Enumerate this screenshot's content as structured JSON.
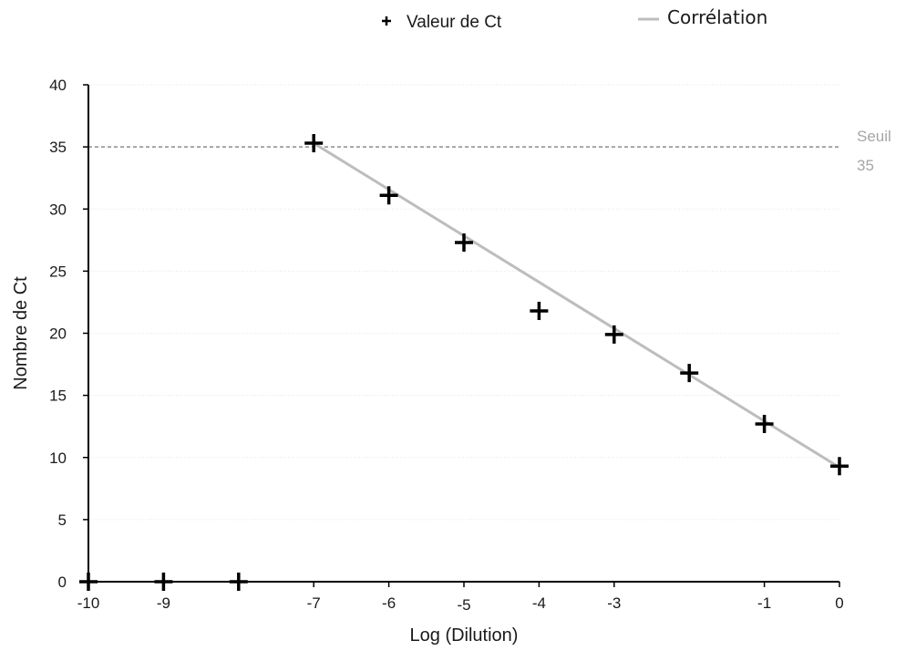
{
  "chart_data": {
    "type": "scatter",
    "title": "",
    "xlabel": "Log (Dilution)",
    "ylabel": "Nombre de Ct",
    "xlim": [
      -10,
      0
    ],
    "ylim": [
      0,
      40
    ],
    "x_ticks": [
      {
        "value": -10,
        "label": "-10"
      },
      {
        "value": -9,
        "label": "-9"
      },
      {
        "value": -7,
        "label": "-7"
      },
      {
        "value": -6,
        "label": "-6"
      },
      {
        "value": -5,
        "label": "-5"
      },
      {
        "value": -4,
        "label": "-4"
      },
      {
        "value": -3,
        "label": "-3"
      },
      {
        "value": -1,
        "label": "-1"
      },
      {
        "value": 0,
        "label": "0"
      }
    ],
    "y_ticks": [
      {
        "value": 0,
        "label": "0"
      },
      {
        "value": 5,
        "label": "5"
      },
      {
        "value": 10,
        "label": "10"
      },
      {
        "value": 15,
        "label": "15"
      },
      {
        "value": 20,
        "label": "20"
      },
      {
        "value": 25,
        "label": "25"
      },
      {
        "value": 30,
        "label": "30"
      },
      {
        "value": 35,
        "label": "35"
      },
      {
        "value": 40,
        "label": "40"
      }
    ],
    "grid": true,
    "legend_position": "top",
    "legend": {
      "points_label": "Valeur de Ct",
      "line_label": "Corrélation"
    },
    "series": [
      {
        "name": "Valeur de Ct",
        "kind": "points",
        "marker": "plus",
        "color": "#000000",
        "points": [
          {
            "x": -10,
            "y": 0
          },
          {
            "x": -9,
            "y": 0
          },
          {
            "x": -8,
            "y": 0
          },
          {
            "x": -7,
            "y": 35.3
          },
          {
            "x": -6,
            "y": 31.1
          },
          {
            "x": -5,
            "y": 27.3
          },
          {
            "x": -4,
            "y": 21.8
          },
          {
            "x": -3,
            "y": 19.9
          },
          {
            "x": -2,
            "y": 16.8
          },
          {
            "x": -1,
            "y": 12.7
          },
          {
            "x": 0,
            "y": 9.3
          }
        ]
      },
      {
        "name": "Corrélation",
        "kind": "line",
        "color": "#bdbdbd",
        "points": [
          {
            "x": -7,
            "y": 35.3
          },
          {
            "x": 0,
            "y": 9.2
          }
        ]
      }
    ],
    "threshold": {
      "value": 35,
      "label_lines": [
        "Seuil",
        "35"
      ],
      "color": "#a6a6a6"
    }
  }
}
